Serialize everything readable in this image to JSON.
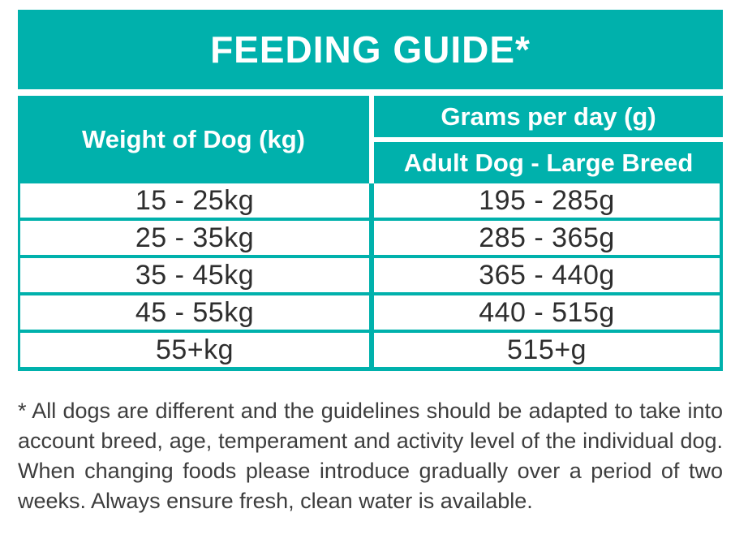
{
  "title": "FEEDING GUIDE*",
  "colors": {
    "accent": "#00b1ac",
    "header_text": "#ffffff",
    "body_text": "#2e2e2e",
    "footnote_text": "#3d3d3d"
  },
  "table": {
    "weight_header": "Weight of Dog (kg)",
    "grams_header": "Grams per day (g)",
    "breed_header": "Adult Dog - Large Breed",
    "rows": [
      {
        "weight": "15 - 25kg",
        "grams": "195 - 285g"
      },
      {
        "weight": "25 - 35kg",
        "grams": "285 - 365g"
      },
      {
        "weight": "35 - 45kg",
        "grams": "365 - 440g"
      },
      {
        "weight": "45 - 55kg",
        "grams": "440 - 515g"
      },
      {
        "weight": "55+kg",
        "grams": "515+g"
      }
    ]
  },
  "footnote": "* All dogs are different and the guidelines should be adapted to take into account breed, age, temperament and activity level of the individual dog. When changing foods please introduce gradually over a period of two weeks. Always ensure fresh, clean water is available."
}
